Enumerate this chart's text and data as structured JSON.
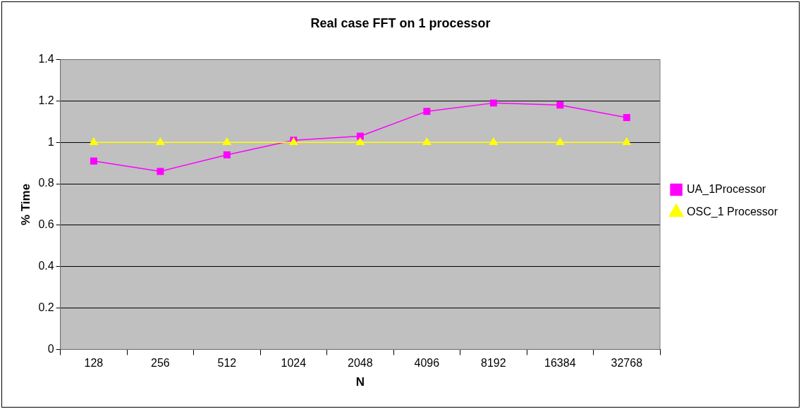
{
  "chart_data": {
    "type": "line",
    "title": "Real case FFT on 1 processor",
    "xlabel": "N",
    "ylabel": "% Time",
    "categories": [
      "128",
      "256",
      "512",
      "1024",
      "2048",
      "4096",
      "8192",
      "16384",
      "32768"
    ],
    "series": [
      {
        "name": "UA_1Processor",
        "color": "#ff00ff",
        "marker": "square",
        "values": [
          0.91,
          0.86,
          0.94,
          1.01,
          1.03,
          1.15,
          1.19,
          1.18,
          1.12
        ]
      },
      {
        "name": "OSC_1 Processor",
        "color": "#ffff00",
        "marker": "triangle",
        "values": [
          1,
          1,
          1,
          1,
          1,
          1,
          1,
          1,
          1
        ]
      }
    ],
    "ylim": [
      0,
      1.4
    ],
    "yticks": [
      0,
      0.2,
      0.4,
      0.6,
      0.8,
      1,
      1.2,
      1.4
    ],
    "grid": "y",
    "legend": "right",
    "line_style": "solid"
  }
}
